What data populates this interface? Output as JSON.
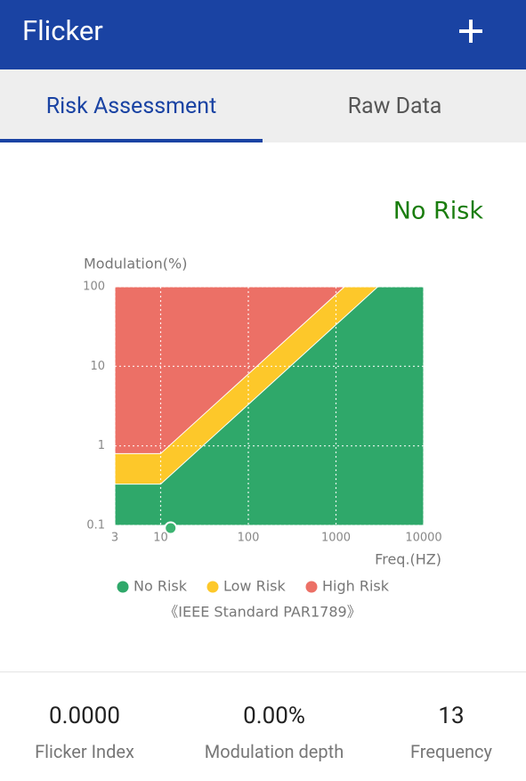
{
  "header": {
    "title": "Flicker"
  },
  "tabs": [
    {
      "label": "Risk Assessment",
      "active": true
    },
    {
      "label": "Raw Data",
      "active": false
    }
  ],
  "status": "No Risk",
  "chart_data": {
    "type": "area",
    "ylabel": "Modulation(%)",
    "xlabel": "Freq.(HZ)",
    "caption": "《IEEE Standard PAR1789》",
    "xlog": true,
    "ylog": true,
    "grid": true,
    "xlim": [
      3,
      10000
    ],
    "ylim": [
      0.1,
      100
    ],
    "xticks": [
      3,
      10,
      100,
      1000,
      10000
    ],
    "yticks": [
      0.1,
      1,
      10,
      100
    ],
    "series": [
      {
        "name": "No Risk",
        "color": "#2fa86a",
        "x": [
          3,
          10,
          3000,
          10000
        ],
        "values": [
          0.33,
          0.33,
          100,
          100
        ]
      },
      {
        "name": "Low Risk",
        "color": "#fdc82a",
        "x": [
          3,
          10,
          1250,
          10000
        ],
        "values": [
          0.8,
          0.8,
          100,
          100
        ]
      },
      {
        "name": "High Risk",
        "color": "#ec7066",
        "x": [
          3,
          10000
        ],
        "values": [
          100,
          100
        ]
      }
    ],
    "marker": {
      "x": 13,
      "y": 0.1,
      "color": "#3cb371"
    }
  },
  "stats": [
    {
      "value": "0.0000",
      "label": "Flicker Index"
    },
    {
      "value": "0.00%",
      "label": "Modulation depth"
    },
    {
      "value": "13",
      "label": "Frequency"
    }
  ]
}
